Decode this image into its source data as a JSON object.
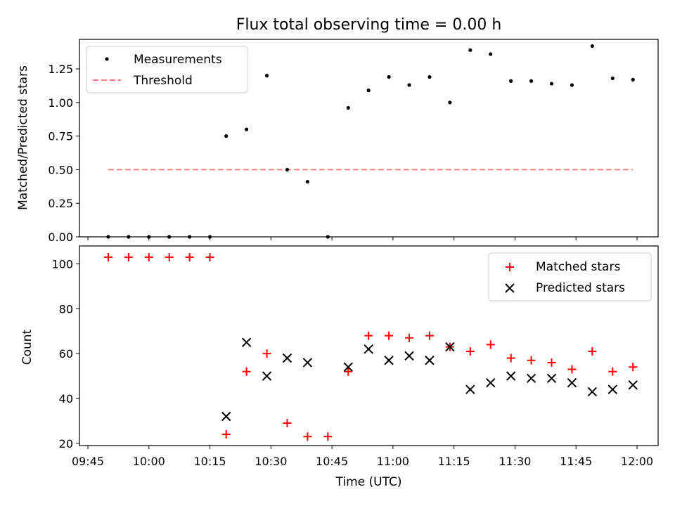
{
  "chart_data": [
    {
      "type": "scatter",
      "title": "Flux total observing time = 0.00 h",
      "xlabel": "",
      "ylabel": "Matched/Predicted stars",
      "ylim": [
        0.0,
        1.47
      ],
      "yticks": [
        "0.00",
        "0.25",
        "0.50",
        "0.75",
        "1.00",
        "1.25"
      ],
      "legend_position": "upper-left",
      "series": [
        {
          "name": "Measurements",
          "color": "#000000",
          "marker": "dot",
          "x": [
            "09:50",
            "09:55",
            "10:00",
            "10:05",
            "10:10",
            "10:15",
            "10:19",
            "10:24",
            "10:29",
            "10:34",
            "10:39",
            "10:44",
            "10:49",
            "10:54",
            "10:59",
            "11:04",
            "11:09",
            "11:14",
            "11:19",
            "11:24",
            "11:29",
            "11:34",
            "11:39",
            "11:44",
            "11:49",
            "11:54",
            "11:59"
          ],
          "values": [
            0.0,
            0.0,
            0.0,
            0.0,
            0.0,
            0.0,
            0.75,
            0.8,
            1.2,
            0.5,
            0.41,
            0.0,
            0.96,
            1.09,
            1.19,
            1.13,
            1.19,
            1.0,
            1.39,
            1.36,
            1.16,
            1.16,
            1.14,
            1.13,
            1.42,
            1.18,
            1.17
          ]
        },
        {
          "name": "Threshold",
          "color": "#ff8080",
          "style": "dashed",
          "x": [
            "09:50",
            "11:59"
          ],
          "values": [
            0.5,
            0.5
          ]
        }
      ]
    },
    {
      "type": "scatter",
      "title": "",
      "xlabel": "Time (UTC)",
      "ylabel": "Count",
      "ylim": [
        19.0,
        108.0
      ],
      "yticks": [
        "20",
        "40",
        "60",
        "80",
        "100"
      ],
      "xticks": [
        "09:45",
        "10:00",
        "10:15",
        "10:30",
        "10:45",
        "11:00",
        "11:15",
        "11:30",
        "11:45",
        "12:00"
      ],
      "legend_position": "upper-right",
      "series": [
        {
          "name": "Matched stars",
          "color": "#ff0000",
          "marker": "plus",
          "x": [
            "09:50",
            "09:55",
            "10:00",
            "10:05",
            "10:10",
            "10:15",
            "10:19",
            "10:24",
            "10:29",
            "10:34",
            "10:39",
            "10:44",
            "10:49",
            "10:54",
            "10:59",
            "11:04",
            "11:09",
            "11:14",
            "11:19",
            "11:24",
            "11:29",
            "11:34",
            "11:39",
            "11:44",
            "11:49",
            "11:54",
            "11:59"
          ],
          "values": [
            103,
            103,
            103,
            103,
            103,
            103,
            24,
            52,
            60,
            29,
            23,
            23,
            52,
            68,
            68,
            67,
            68,
            63,
            61,
            64,
            58,
            57,
            56,
            53,
            61,
            52,
            54
          ]
        },
        {
          "name": "Predicted stars",
          "color": "#000000",
          "marker": "x",
          "x": [
            "10:19",
            "10:24",
            "10:29",
            "10:34",
            "10:39",
            "10:49",
            "10:54",
            "10:59",
            "11:04",
            "11:09",
            "11:14",
            "11:19",
            "11:24",
            "11:29",
            "11:34",
            "11:39",
            "11:44",
            "11:49",
            "11:54",
            "11:59"
          ],
          "values": [
            32,
            65,
            50,
            58,
            56,
            54,
            62,
            57,
            59,
            57,
            63,
            44,
            47,
            50,
            49,
            49,
            47,
            43,
            44,
            46
          ]
        }
      ]
    }
  ]
}
